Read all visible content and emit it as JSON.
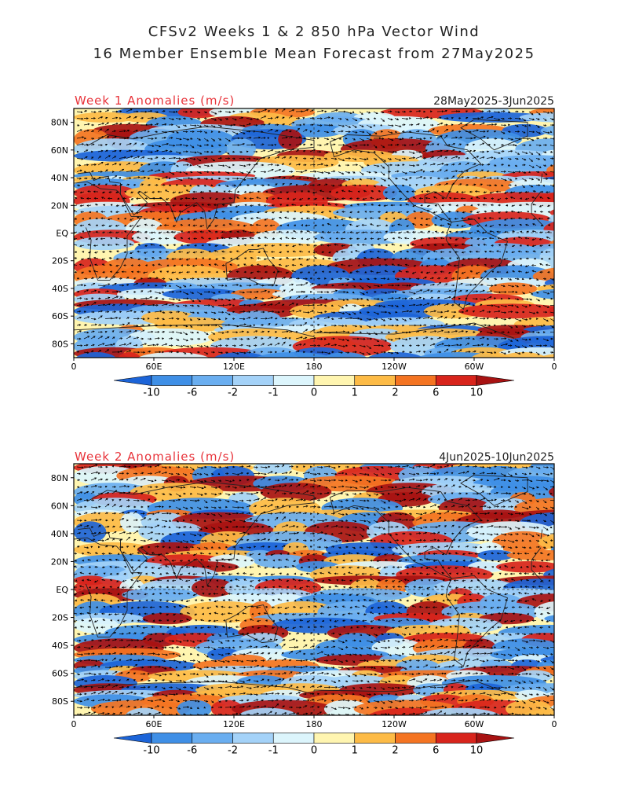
{
  "header": {
    "title_line1": "CFSv2 Weeks 1 & 2 850 hPa Vector Wind",
    "title_line2": "16 Member Ensemble Mean Forecast from 27May2025"
  },
  "lat_labels": [
    "80N",
    "60N",
    "40N",
    "20N",
    "EQ",
    "20S",
    "40S",
    "60S",
    "80S"
  ],
  "lon_labels": [
    "0",
    "60E",
    "120E",
    "180",
    "120W",
    "60W",
    "0"
  ],
  "colorbar": {
    "labels": [
      "-10",
      "-6",
      "-2",
      "-1",
      "0",
      "1",
      "2",
      "6",
      "10"
    ],
    "colors": [
      "#1c64d8",
      "#3f8fe6",
      "#6aaef0",
      "#a4d2f8",
      "#dcf5fc",
      "#fff5b0",
      "#fdbb46",
      "#f47422",
      "#d8241c",
      "#a81212"
    ]
  },
  "panels": [
    {
      "label": "Week 1 Anomalies (m/s)",
      "dates": "28May2025-3Jun2025"
    },
    {
      "label": "Week 2 Anomalies (m/s)",
      "dates": "4Jun2025-10Jun2025"
    }
  ]
}
